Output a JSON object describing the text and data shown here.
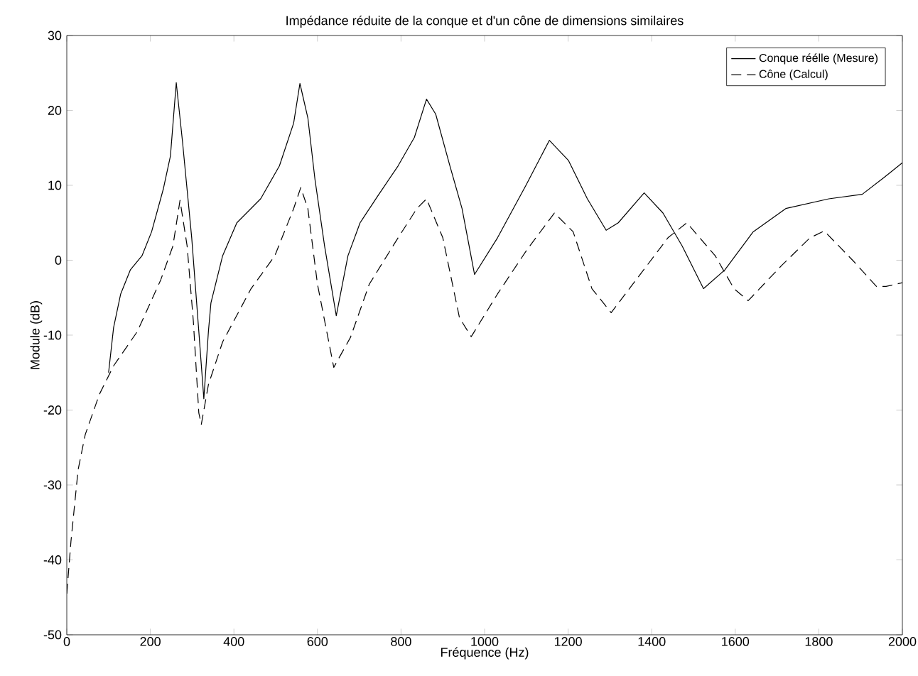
{
  "chart_data": {
    "type": "line",
    "title": "Impédance réduite de la conque et d'un cône de dimensions similaires",
    "xlabel": "Fréquence (Hz)",
    "ylabel": "Module (dB)",
    "xlim": [
      0,
      2000
    ],
    "ylim": [
      -50,
      30
    ],
    "xticks": [
      0,
      200,
      400,
      600,
      800,
      1000,
      1200,
      1400,
      1600,
      1800,
      2000
    ],
    "yticks": [
      -50,
      -40,
      -30,
      -20,
      -10,
      0,
      10,
      20,
      30
    ],
    "grid": false,
    "legend": "top right",
    "marker": "none",
    "series": [
      {
        "name": "Conque réélle (Mesure)",
        "color": "#000000",
        "line_style": "solid",
        "x": [
          100,
          112,
          129,
          152,
          180,
          203,
          231,
          248,
          262,
          277,
          299,
          316,
          328,
          339,
          345,
          373,
          407,
          464,
          509,
          543,
          558,
          577,
          594,
          617,
          645,
          673,
          702,
          747,
          793,
          832,
          861,
          883,
          917,
          946,
          976,
          1031,
          1099,
          1155,
          1201,
          1246,
          1291,
          1320,
          1382,
          1427,
          1473,
          1524,
          1575,
          1643,
          1721,
          1824,
          1904,
          1955,
          2000
        ],
        "values": [
          -15,
          -9,
          -4.5,
          -1.3,
          0.6,
          3.8,
          9.5,
          13.9,
          23.7,
          15.8,
          3,
          -9.5,
          -18.5,
          -9.5,
          -5.7,
          0.6,
          5,
          8.2,
          12.6,
          18.3,
          23.6,
          19,
          10.8,
          1.9,
          -7.4,
          0.6,
          5,
          8.8,
          12.6,
          16.4,
          21.5,
          19.5,
          12.6,
          6.9,
          -1.9,
          3,
          10,
          16,
          13.3,
          8.2,
          4,
          5,
          9,
          6.3,
          1.9,
          -3.8,
          -1.3,
          3.8,
          6.9,
          8.2,
          8.8,
          11,
          13
        ]
      },
      {
        "name": "Cône (Calcul)",
        "color": "#000000",
        "line_style": "dashed",
        "x": [
          0,
          10,
          27,
          44,
          78,
          112,
          169,
          225,
          254,
          271,
          288,
          303,
          316,
          322,
          339,
          373,
          441,
          498,
          543,
          560,
          577,
          600,
          639,
          679,
          724,
          793,
          838,
          861,
          900,
          940,
          968,
          1031,
          1099,
          1167,
          1212,
          1257,
          1303,
          1371,
          1439,
          1484,
          1552,
          1597,
          1631,
          1711,
          1779,
          1813,
          1881,
          1938,
          1961,
          2000
        ],
        "values": [
          -44.5,
          -37.5,
          -28,
          -23.3,
          -17.9,
          -14.1,
          -9.5,
          -2.6,
          1.9,
          8,
          1.9,
          -8.2,
          -20.4,
          -21.9,
          -16.6,
          -10.9,
          -3.8,
          0.6,
          6.9,
          9.7,
          6.9,
          -3.2,
          -14.3,
          -10.3,
          -3.2,
          3,
          6.9,
          8.2,
          3,
          -7.7,
          -10.2,
          -4.5,
          1.2,
          6.3,
          3.8,
          -3.8,
          -7,
          -2,
          3,
          5,
          0.6,
          -3.8,
          -5.4,
          -0.7,
          3,
          3.9,
          0,
          -3.5,
          -3.5,
          -3
        ]
      }
    ]
  }
}
